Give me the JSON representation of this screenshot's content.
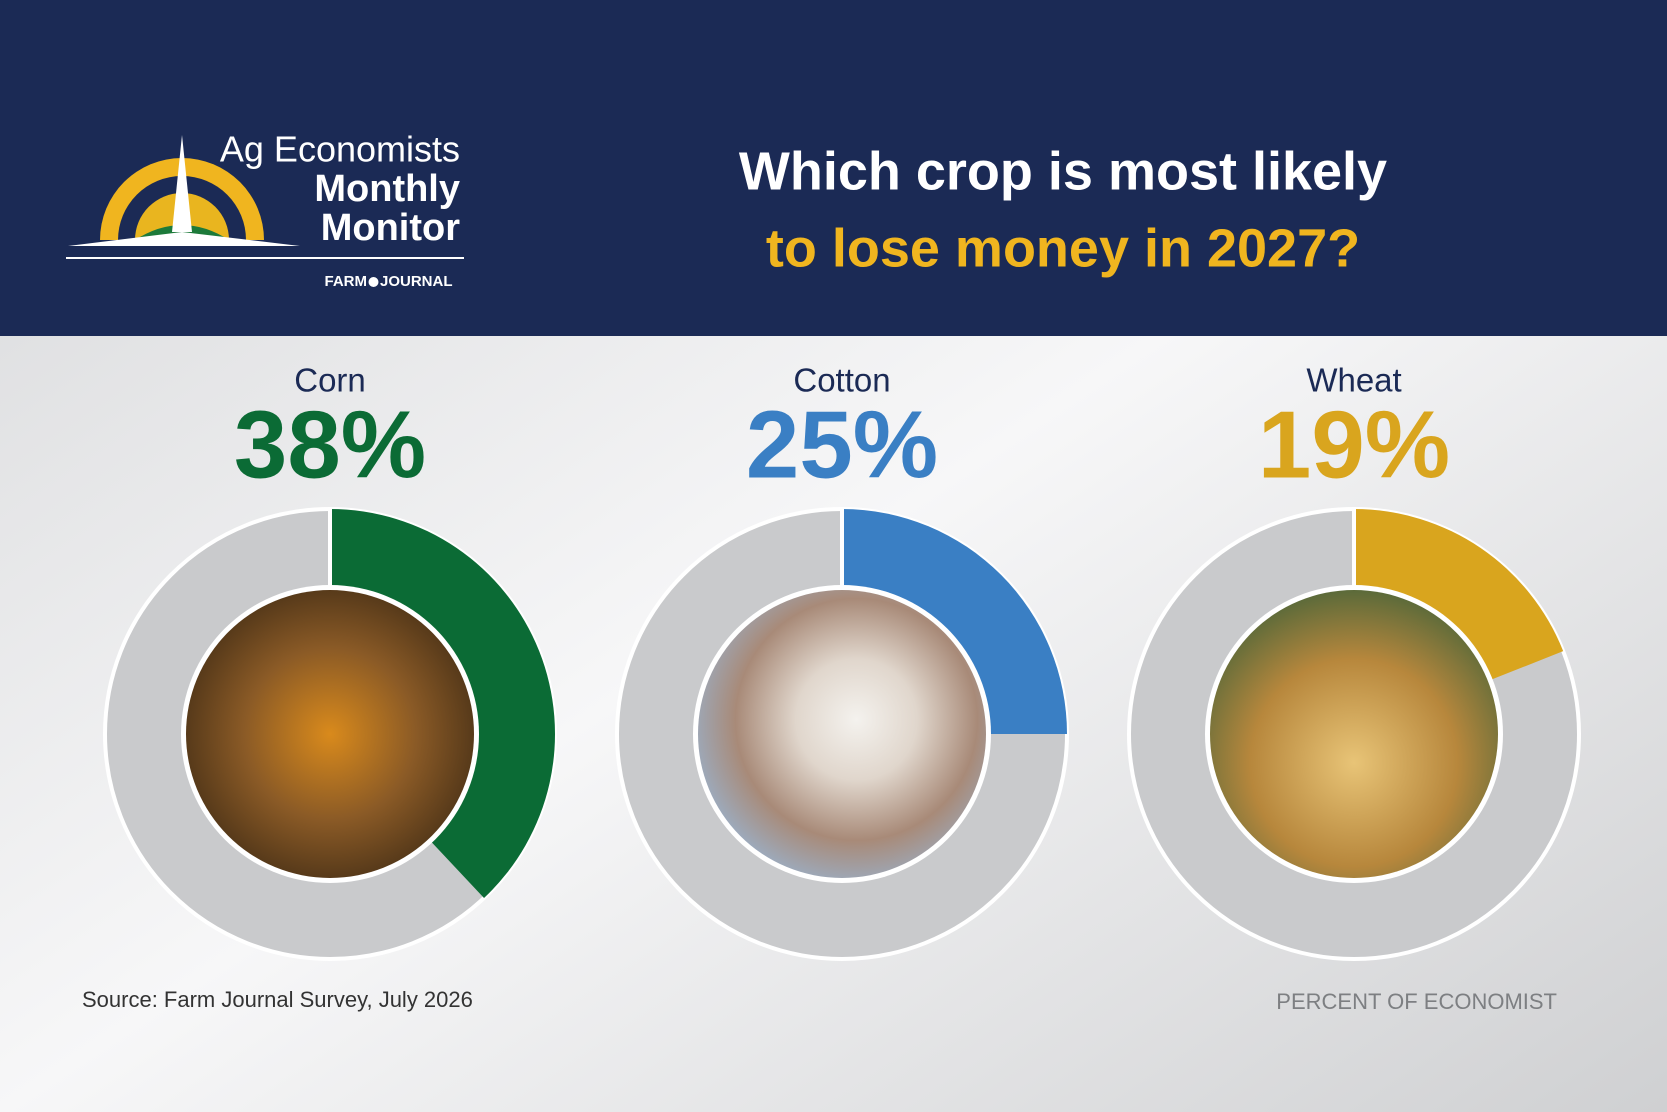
{
  "header": {
    "logo": {
      "line1": "Ag Economists",
      "line2": "Monthly",
      "line3": "Monitor",
      "brand_left": "FARM",
      "brand_right": "JOURNAL"
    },
    "title_line1": "Which crop is most likely",
    "title_line2": "to lose money in 2027?"
  },
  "chart_data": [
    {
      "type": "donut",
      "title": "Corn",
      "values": [
        38
      ],
      "value_labels": [
        "38%"
      ],
      "color": "#0b6b35",
      "max": 100
    },
    {
      "type": "donut",
      "title": "Cotton",
      "values": [
        25
      ],
      "value_labels": [
        "25%"
      ],
      "color": "#3a7fc4",
      "max": 100
    },
    {
      "type": "donut",
      "title": "Wheat",
      "values": [
        19
      ],
      "value_labels": [
        "19%"
      ],
      "color": "#d9a51e",
      "max": 100
    }
  ],
  "source": "Source: Farm Journal Survey, July 2026",
  "note": "PERCENT OF ECONOMIST"
}
